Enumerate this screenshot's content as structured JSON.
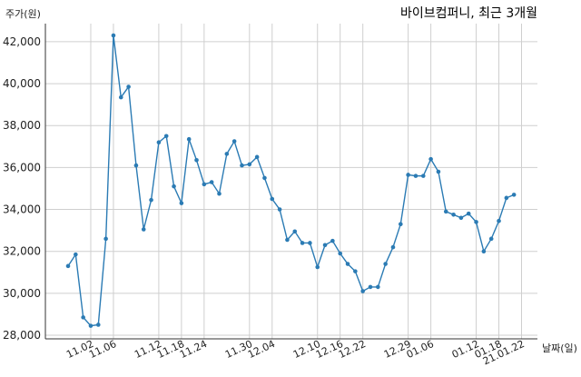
{
  "chart_data": {
    "type": "line",
    "title": "바이브컴퍼니, 최근 3개월",
    "ylabel": "주가(원)",
    "xlabel": "날짜(일)",
    "ylim": [
      28000,
      43000
    ],
    "yticks": [
      28000,
      30000,
      32000,
      34000,
      36000,
      38000,
      40000,
      42000
    ],
    "ytick_labels": [
      "28,000",
      "30,000",
      "32,000",
      "34,000",
      "36,000",
      "38,000",
      "40,000",
      "42,000"
    ],
    "xtick_labels": [
      "11.02",
      "11.06",
      "11.12",
      "11.18",
      "11.24",
      "11.30",
      "12.04",
      "12.10",
      "12.16",
      "12.22",
      "12.29",
      "01.06",
      "01.12",
      "01.18",
      "21.01.22"
    ],
    "xtick_index": [
      3,
      6,
      12,
      15,
      18,
      24,
      27,
      33,
      36,
      39,
      45,
      48,
      54,
      57,
      60
    ],
    "grid": true,
    "series": [
      {
        "color": "#2b7bb4",
        "values": [
          31300,
          31850,
          28850,
          28450,
          28500,
          32600,
          42300,
          39350,
          39850,
          36100,
          33050,
          34450,
          37200,
          37500,
          35100,
          34300,
          37350,
          36350,
          35200,
          35300,
          34750,
          36650,
          37250,
          36100,
          36150,
          36500,
          35500,
          34500,
          34000,
          32550,
          32950,
          32400,
          32400,
          31250,
          32300,
          32500,
          31900,
          31400,
          31050,
          30100,
          30300,
          30300,
          31400,
          32200,
          33300,
          35650,
          35600,
          35600,
          36400,
          35800,
          33900,
          33750,
          33600,
          33800,
          33400,
          32000,
          32600,
          33450,
          34550,
          34700
        ]
      }
    ]
  }
}
